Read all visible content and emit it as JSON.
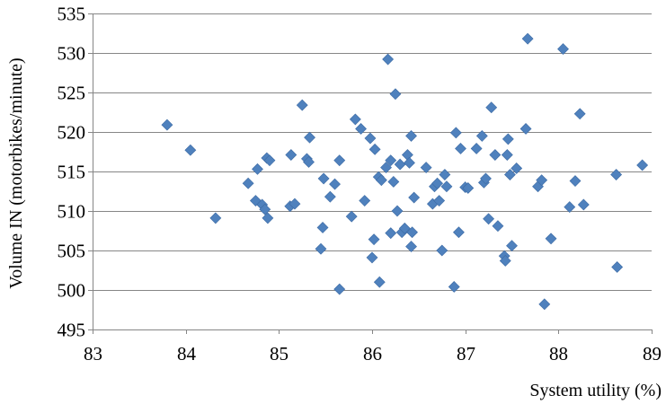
{
  "chart_data": {
    "type": "scatter",
    "title": "",
    "xlabel": "System utility (%)",
    "ylabel": "Volume IN (motorbikes/minute)",
    "xlim": [
      83,
      89
    ],
    "ylim": [
      495,
      535
    ],
    "xticks": [
      83,
      84,
      85,
      86,
      87,
      88,
      89
    ],
    "yticks": [
      495,
      500,
      505,
      510,
      515,
      520,
      525,
      530,
      535
    ],
    "grid": "horizontal",
    "legend": "none",
    "marker": "diamond",
    "color": "#4f81bd",
    "points": [
      [
        83.8,
        520.9
      ],
      [
        84.05,
        517.7
      ],
      [
        84.32,
        509.1
      ],
      [
        84.67,
        513.5
      ],
      [
        84.75,
        511.3
      ],
      [
        84.77,
        515.3
      ],
      [
        84.82,
        510.8
      ],
      [
        84.85,
        510.2
      ],
      [
        84.87,
        516.7
      ],
      [
        84.88,
        509.1
      ],
      [
        84.9,
        516.4
      ],
      [
        85.12,
        510.6
      ],
      [
        85.13,
        517.1
      ],
      [
        85.17,
        510.9
      ],
      [
        85.25,
        523.4
      ],
      [
        85.3,
        516.6
      ],
      [
        85.32,
        516.2
      ],
      [
        85.33,
        519.3
      ],
      [
        85.45,
        505.2
      ],
      [
        85.47,
        507.9
      ],
      [
        85.48,
        514.1
      ],
      [
        85.55,
        511.8
      ],
      [
        85.6,
        513.4
      ],
      [
        85.65,
        516.4
      ],
      [
        85.65,
        500.1
      ],
      [
        85.78,
        509.3
      ],
      [
        85.82,
        521.6
      ],
      [
        85.88,
        520.4
      ],
      [
        85.92,
        511.3
      ],
      [
        85.98,
        519.2
      ],
      [
        86.0,
        504.1
      ],
      [
        86.02,
        506.4
      ],
      [
        86.03,
        517.8
      ],
      [
        86.07,
        514.3
      ],
      [
        86.08,
        501.0
      ],
      [
        86.1,
        513.9
      ],
      [
        86.15,
        515.5
      ],
      [
        86.17,
        529.2
      ],
      [
        86.2,
        507.2
      ],
      [
        86.2,
        516.4
      ],
      [
        86.23,
        513.7
      ],
      [
        86.25,
        524.8
      ],
      [
        86.27,
        510.0
      ],
      [
        86.3,
        515.9
      ],
      [
        86.32,
        507.3
      ],
      [
        86.35,
        507.8
      ],
      [
        86.38,
        517.1
      ],
      [
        86.4,
        516.1
      ],
      [
        86.42,
        519.5
      ],
      [
        86.42,
        505.5
      ],
      [
        86.43,
        507.3
      ],
      [
        86.45,
        511.7
      ],
      [
        86.58,
        515.5
      ],
      [
        86.65,
        510.9
      ],
      [
        86.67,
        513.1
      ],
      [
        86.7,
        513.5
      ],
      [
        86.72,
        511.3
      ],
      [
        86.75,
        505.0
      ],
      [
        86.78,
        514.6
      ],
      [
        86.8,
        513.1
      ],
      [
        86.88,
        500.4
      ],
      [
        86.9,
        519.9
      ],
      [
        86.93,
        507.3
      ],
      [
        86.95,
        517.9
      ],
      [
        87.0,
        513.0
      ],
      [
        87.03,
        512.9
      ],
      [
        87.12,
        517.9
      ],
      [
        87.18,
        519.5
      ],
      [
        87.2,
        513.6
      ],
      [
        87.22,
        514.1
      ],
      [
        87.25,
        509.0
      ],
      [
        87.28,
        523.1
      ],
      [
        87.32,
        517.1
      ],
      [
        87.35,
        508.1
      ],
      [
        87.42,
        504.3
      ],
      [
        87.43,
        503.7
      ],
      [
        87.45,
        517.1
      ],
      [
        87.46,
        519.1
      ],
      [
        87.48,
        514.6
      ],
      [
        87.5,
        505.6
      ],
      [
        87.55,
        515.4
      ],
      [
        87.65,
        520.4
      ],
      [
        87.67,
        531.8
      ],
      [
        87.78,
        513.1
      ],
      [
        87.82,
        513.9
      ],
      [
        87.85,
        498.2
      ],
      [
        87.92,
        506.5
      ],
      [
        88.05,
        530.5
      ],
      [
        88.12,
        510.5
      ],
      [
        88.18,
        513.8
      ],
      [
        88.23,
        522.3
      ],
      [
        88.27,
        510.8
      ],
      [
        88.62,
        514.6
      ],
      [
        88.63,
        502.9
      ],
      [
        88.9,
        515.8
      ]
    ]
  }
}
